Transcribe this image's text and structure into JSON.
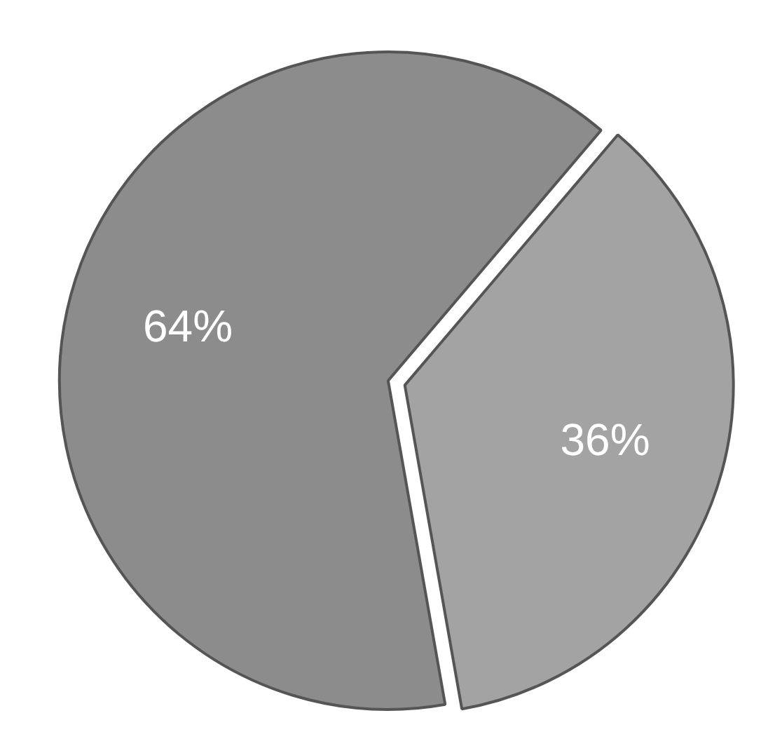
{
  "chart_data": {
    "type": "pie",
    "categories": [
      null,
      null
    ],
    "values": [
      64,
      36
    ],
    "colors": [
      "#8c8c8c",
      "#a3a3a3"
    ],
    "value_labels": [
      "64%",
      "36%"
    ]
  }
}
